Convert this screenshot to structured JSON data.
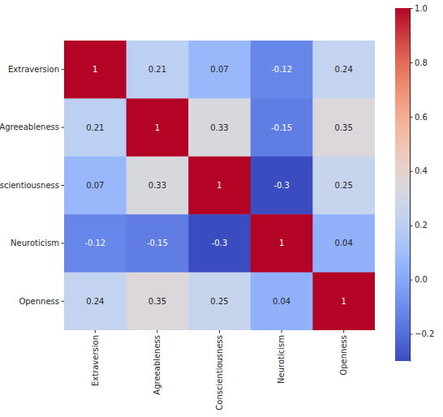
{
  "chart_data": {
    "type": "heatmap",
    "categories": [
      "Extraversion",
      "Agreeableness",
      "Conscientiousness",
      "Neuroticism",
      "Openness"
    ],
    "values": [
      [
        1,
        0.21,
        0.07,
        -0.12,
        0.24
      ],
      [
        0.21,
        1,
        0.33,
        -0.15,
        0.35
      ],
      [
        0.07,
        0.33,
        1,
        -0.3,
        0.25
      ],
      [
        -0.12,
        -0.15,
        -0.3,
        1,
        0.04
      ],
      [
        0.24,
        0.35,
        0.25,
        0.04,
        1
      ]
    ],
    "data_labels": true,
    "color_range": [
      -0.3,
      1
    ],
    "color_ticks": [
      {
        "value": -0.2,
        "label": "−0.2"
      },
      {
        "value": 0,
        "label": "0.0"
      },
      0.2,
      0.4,
      0.6,
      0.8,
      {
        "value": 1,
        "label": "1.0"
      }
    ]
  }
}
